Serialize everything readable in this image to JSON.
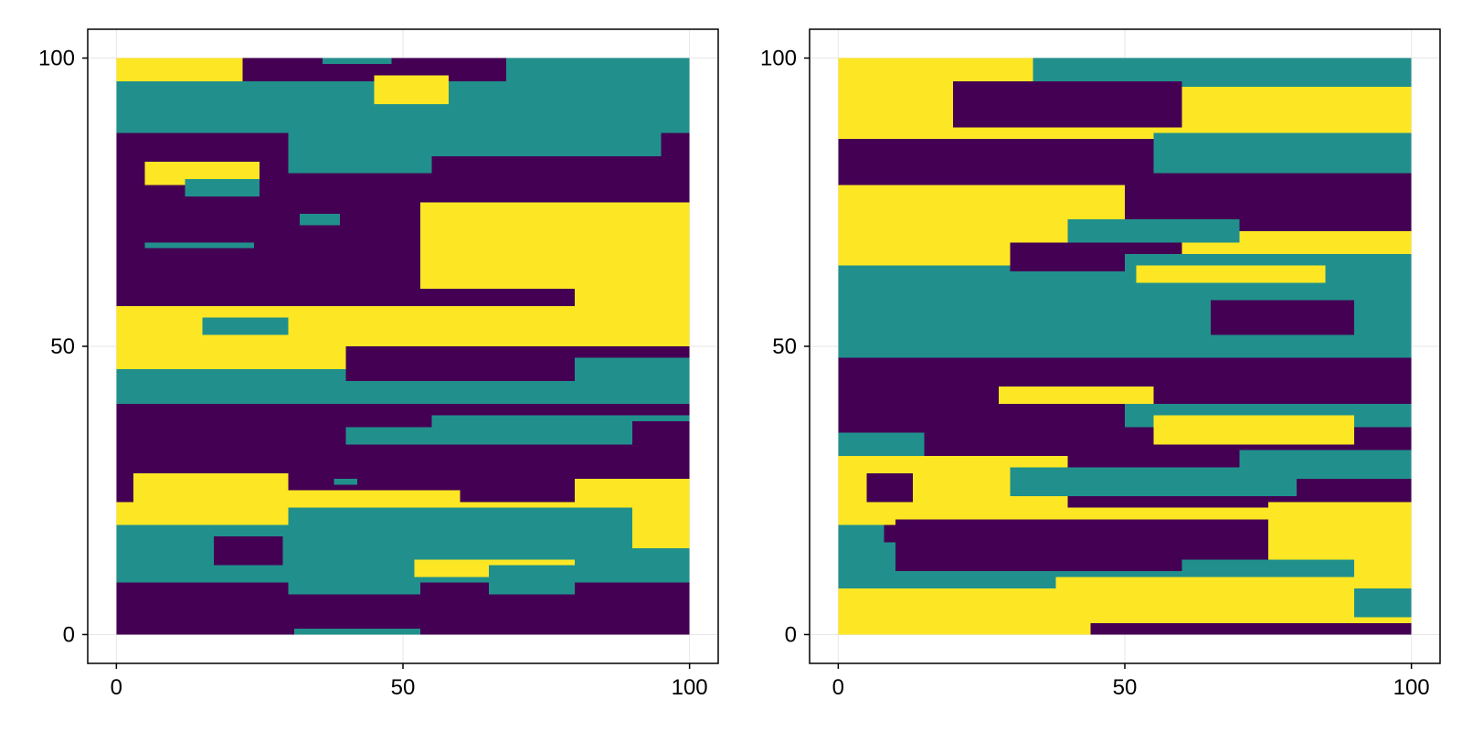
{
  "figure": {
    "panel_count": 2,
    "background": "#ffffff",
    "frame_color": "#000000",
    "grid_color": "#e6e6e6"
  },
  "chart_data": [
    {
      "type": "heatmap",
      "title": "",
      "xlabel": "",
      "ylabel": "",
      "xlim": [
        -5,
        105
      ],
      "ylim": [
        -5,
        105
      ],
      "x_ticks": [
        "0",
        "50",
        "100"
      ],
      "y_ticks": [
        "0",
        "50",
        "100"
      ],
      "grid": true,
      "grid_size": [
        101,
        101
      ],
      "value_levels": [
        1,
        2,
        3
      ],
      "colormap": {
        "1": "#440154",
        "2": "#21908c",
        "3": "#fde725"
      },
      "bands": [
        {
          "y": [
            0,
            9
          ],
          "value": 1
        },
        {
          "y": [
            9,
            19
          ],
          "value": 2
        },
        {
          "y": [
            19,
            23
          ],
          "value": 3
        },
        {
          "y": [
            23,
            40
          ],
          "value": 1
        },
        {
          "y": [
            40,
            46
          ],
          "value": 2
        },
        {
          "y": [
            46,
            57
          ],
          "value": 3
        },
        {
          "y": [
            57,
            87
          ],
          "value": 1
        },
        {
          "y": [
            87,
            96
          ],
          "value": 2
        },
        {
          "y": [
            96,
            100
          ],
          "value": 1
        }
      ],
      "patches": [
        {
          "x": [
            0,
            22
          ],
          "y": [
            96,
            100
          ],
          "value": 3
        },
        {
          "x": [
            36,
            48
          ],
          "y": [
            99,
            100
          ],
          "value": 2
        },
        {
          "x": [
            68,
            100
          ],
          "y": [
            93,
            100
          ],
          "value": 2
        },
        {
          "x": [
            45,
            58
          ],
          "y": [
            92,
            97
          ],
          "value": 3
        },
        {
          "x": [
            30,
            55
          ],
          "y": [
            80,
            88
          ],
          "value": 2
        },
        {
          "x": [
            45,
            95
          ],
          "y": [
            83,
            90
          ],
          "value": 2
        },
        {
          "x": [
            5,
            25
          ],
          "y": [
            78,
            82
          ],
          "value": 3
        },
        {
          "x": [
            12,
            25
          ],
          "y": [
            76,
            79
          ],
          "value": 2
        },
        {
          "x": [
            53,
            100
          ],
          "y": [
            60,
            75
          ],
          "value": 3
        },
        {
          "x": [
            80,
            100
          ],
          "y": [
            50,
            60
          ],
          "value": 3
        },
        {
          "x": [
            5,
            24
          ],
          "y": [
            67,
            68
          ],
          "value": 2
        },
        {
          "x": [
            32,
            39
          ],
          "y": [
            71,
            73
          ],
          "value": 2
        },
        {
          "x": [
            15,
            30
          ],
          "y": [
            52,
            55
          ],
          "value": 2
        },
        {
          "x": [
            40,
            100
          ],
          "y": [
            44,
            50
          ],
          "value": 1
        },
        {
          "x": [
            80,
            100
          ],
          "y": [
            37,
            48
          ],
          "value": 2
        },
        {
          "x": [
            55,
            90
          ],
          "y": [
            33,
            44
          ],
          "value": 2
        },
        {
          "x": [
            40,
            80
          ],
          "y": [
            33,
            36
          ],
          "value": 2
        },
        {
          "x": [
            0,
            100
          ],
          "y": [
            38,
            40
          ],
          "value": 1
        },
        {
          "x": [
            3,
            30
          ],
          "y": [
            23,
            28
          ],
          "value": 3
        },
        {
          "x": [
            80,
            100
          ],
          "y": [
            20,
            27
          ],
          "value": 3
        },
        {
          "x": [
            60,
            100
          ],
          "y": [
            15,
            22
          ],
          "value": 3
        },
        {
          "x": [
            20,
            60
          ],
          "y": [
            20,
            25
          ],
          "value": 3
        },
        {
          "x": [
            30,
            90
          ],
          "y": [
            18,
            22
          ],
          "value": 2
        },
        {
          "x": [
            55,
            90
          ],
          "y": [
            10,
            18
          ],
          "value": 2
        },
        {
          "x": [
            52,
            80
          ],
          "y": [
            10,
            13
          ],
          "value": 3
        },
        {
          "x": [
            65,
            80
          ],
          "y": [
            7,
            12
          ],
          "value": 2
        },
        {
          "x": [
            30,
            53
          ],
          "y": [
            7,
            9
          ],
          "value": 2
        },
        {
          "x": [
            31,
            53
          ],
          "y": [
            0,
            1
          ],
          "value": 2
        },
        {
          "x": [
            17,
            29
          ],
          "y": [
            12,
            17
          ],
          "value": 1
        },
        {
          "x": [
            38,
            42
          ],
          "y": [
            26,
            27
          ],
          "value": 2
        }
      ]
    },
    {
      "type": "heatmap",
      "title": "",
      "xlabel": "",
      "ylabel": "",
      "xlim": [
        -5,
        105
      ],
      "ylim": [
        -5,
        105
      ],
      "x_ticks": [
        "0",
        "50",
        "100"
      ],
      "y_ticks": [
        "0",
        "50",
        "100"
      ],
      "grid": true,
      "grid_size": [
        101,
        101
      ],
      "value_levels": [
        1,
        2,
        3
      ],
      "colormap": {
        "1": "#440154",
        "2": "#21908c",
        "3": "#fde725"
      },
      "bands": [
        {
          "y": [
            0,
            8
          ],
          "value": 3
        },
        {
          "y": [
            8,
            19
          ],
          "value": 2
        },
        {
          "y": [
            19,
            31
          ],
          "value": 3
        },
        {
          "y": [
            31,
            48
          ],
          "value": 1
        },
        {
          "y": [
            48,
            64
          ],
          "value": 2
        },
        {
          "y": [
            64,
            78
          ],
          "value": 3
        },
        {
          "y": [
            78,
            86
          ],
          "value": 1
        },
        {
          "y": [
            86,
            100
          ],
          "value": 3
        }
      ],
      "patches": [
        {
          "x": [
            34,
            100
          ],
          "y": [
            95,
            100
          ],
          "value": 2
        },
        {
          "x": [
            20,
            60
          ],
          "y": [
            88,
            96
          ],
          "value": 1
        },
        {
          "x": [
            60,
            100
          ],
          "y": [
            86,
            95
          ],
          "value": 3
        },
        {
          "x": [
            55,
            100
          ],
          "y": [
            80,
            87
          ],
          "value": 2
        },
        {
          "x": [
            50,
            100
          ],
          "y": [
            70,
            80
          ],
          "value": 1
        },
        {
          "x": [
            40,
            70
          ],
          "y": [
            68,
            72
          ],
          "value": 2
        },
        {
          "x": [
            30,
            60
          ],
          "y": [
            63,
            68
          ],
          "value": 1
        },
        {
          "x": [
            50,
            100
          ],
          "y": [
            60,
            66
          ],
          "value": 2
        },
        {
          "x": [
            52,
            85
          ],
          "y": [
            61,
            64
          ],
          "value": 3
        },
        {
          "x": [
            65,
            90
          ],
          "y": [
            52,
            58
          ],
          "value": 1
        },
        {
          "x": [
            0,
            100
          ],
          "y": [
            42,
            47
          ],
          "value": 1
        },
        {
          "x": [
            28,
            55
          ],
          "y": [
            40,
            43
          ],
          "value": 3
        },
        {
          "x": [
            50,
            100
          ],
          "y": [
            36,
            40
          ],
          "value": 2
        },
        {
          "x": [
            55,
            90
          ],
          "y": [
            33,
            38
          ],
          "value": 3
        },
        {
          "x": [
            0,
            15
          ],
          "y": [
            31,
            35
          ],
          "value": 2
        },
        {
          "x": [
            40,
            100
          ],
          "y": [
            22,
            32
          ],
          "value": 1
        },
        {
          "x": [
            70,
            100
          ],
          "y": [
            27,
            32
          ],
          "value": 2
        },
        {
          "x": [
            30,
            80
          ],
          "y": [
            24,
            29
          ],
          "value": 2
        },
        {
          "x": [
            5,
            13
          ],
          "y": [
            23,
            28
          ],
          "value": 1
        },
        {
          "x": [
            10,
            75
          ],
          "y": [
            11,
            20
          ],
          "value": 1
        },
        {
          "x": [
            75,
            100
          ],
          "y": [
            8,
            23
          ],
          "value": 3
        },
        {
          "x": [
            38,
            75
          ],
          "y": [
            2,
            10
          ],
          "value": 3
        },
        {
          "x": [
            44,
            100
          ],
          "y": [
            0,
            2
          ],
          "value": 1
        },
        {
          "x": [
            90,
            100
          ],
          "y": [
            3,
            8
          ],
          "value": 2
        },
        {
          "x": [
            60,
            90
          ],
          "y": [
            10,
            13
          ],
          "value": 2
        },
        {
          "x": [
            8,
            38
          ],
          "y": [
            16,
            19
          ],
          "value": 1
        },
        {
          "x": [
            5,
            12
          ],
          "y": [
            8,
            10
          ],
          "value": 2
        }
      ]
    }
  ]
}
